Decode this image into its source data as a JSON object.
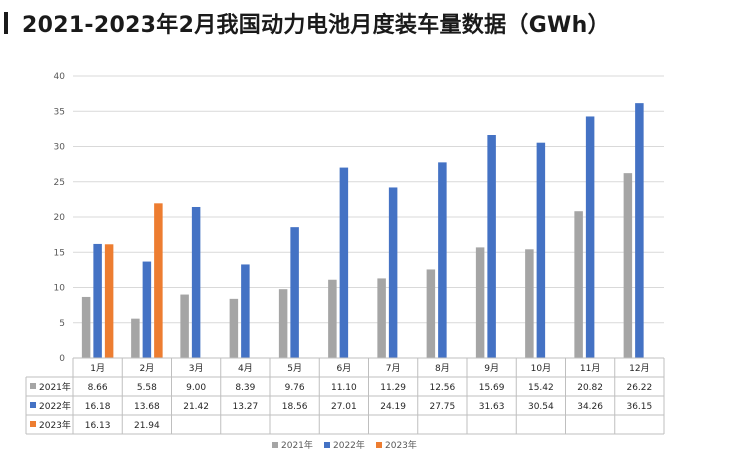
{
  "title": "2021-2023年2月我国动力电池月度装车量数据（GWh）",
  "chart_data": {
    "type": "bar",
    "title": "2021-2023年2月我国动力电池月度装车量数据（GWh）",
    "categories": [
      "1月",
      "2月",
      "3月",
      "4月",
      "5月",
      "6月",
      "7月",
      "8月",
      "9月",
      "10月",
      "11月",
      "12月"
    ],
    "ylim": [
      0,
      40
    ],
    "yticks": [
      "0",
      "5",
      "10",
      "15",
      "20",
      "25",
      "30",
      "35",
      "40"
    ],
    "grid": true,
    "legend_position": "bottom",
    "series": [
      {
        "name": "2021年",
        "color": "#a5a5a5",
        "values": [
          8.66,
          5.58,
          9.0,
          8.39,
          9.76,
          11.1,
          11.29,
          12.56,
          15.69,
          15.42,
          20.82,
          26.22
        ],
        "labels": [
          "8.66",
          "5.58",
          "9.00",
          "8.39",
          "9.76",
          "11.10",
          "11.29",
          "12.56",
          "15.69",
          "15.42",
          "20.82",
          "26.22"
        ]
      },
      {
        "name": "2022年",
        "color": "#4472c4",
        "values": [
          16.18,
          13.68,
          21.42,
          13.27,
          18.56,
          27.01,
          24.19,
          27.75,
          31.63,
          30.54,
          34.26,
          36.15
        ],
        "labels": [
          "16.18",
          "13.68",
          "21.42",
          "13.27",
          "18.56",
          "27.01",
          "24.19",
          "27.75",
          "31.63",
          "30.54",
          "34.26",
          "36.15"
        ]
      },
      {
        "name": "2023年",
        "color": "#ed7d31",
        "values": [
          16.13,
          21.94,
          null,
          null,
          null,
          null,
          null,
          null,
          null,
          null,
          null,
          null
        ],
        "labels": [
          "16.13",
          "21.94",
          "",
          "",
          "",
          "",
          "",
          "",
          "",
          "",
          "",
          ""
        ]
      }
    ]
  }
}
